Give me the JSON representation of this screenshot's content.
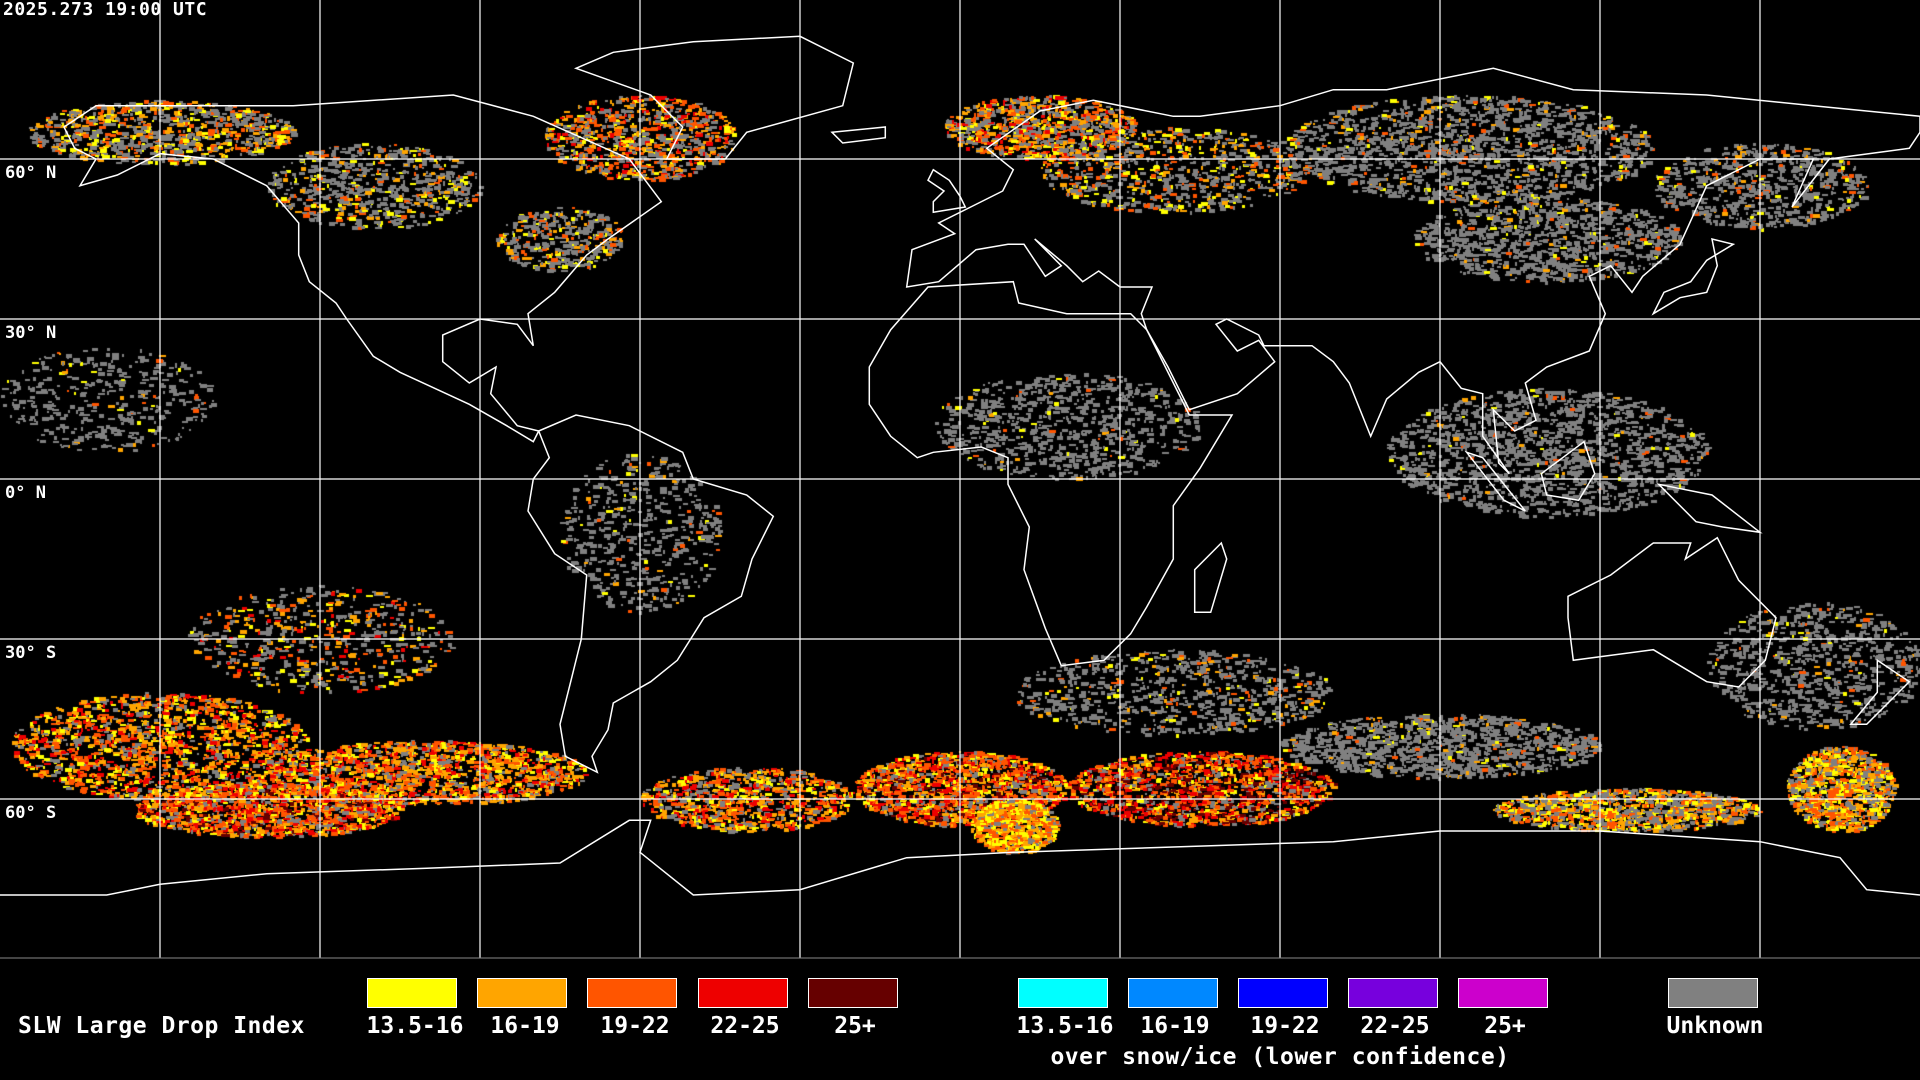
{
  "header": {
    "timestamp": "2025.273 19:00 UTC"
  },
  "map": {
    "projection": "equirectangular",
    "graticule_spacing_deg": 30,
    "lat_labels": [
      "60° N",
      "30° N",
      "0° N",
      "30° S",
      "60° S"
    ],
    "coastline_color": "#ffffff",
    "grid_color": "#ffffff"
  },
  "legend": {
    "title": "SLW Large Drop Index",
    "main_bins": [
      {
        "label": "13.5-16",
        "color": "#ffff00"
      },
      {
        "label": "16-19",
        "color": "#ffa500"
      },
      {
        "label": "19-22",
        "color": "#ff5500"
      },
      {
        "label": "22-25",
        "color": "#ee0000"
      },
      {
        "label": "25+",
        "color": "#660000"
      }
    ],
    "snow_ice_bins": [
      {
        "label": "13.5-16",
        "color": "#00ffff"
      },
      {
        "label": "16-19",
        "color": "#0088ff"
      },
      {
        "label": "19-22",
        "color": "#0000ff"
      },
      {
        "label": "22-25",
        "color": "#7700dd"
      },
      {
        "label": "25+",
        "color": "#cc00cc"
      }
    ],
    "snow_ice_caption": "over snow/ice (lower confidence)",
    "unknown": {
      "label": "Unknown",
      "color": "#808080"
    }
  }
}
